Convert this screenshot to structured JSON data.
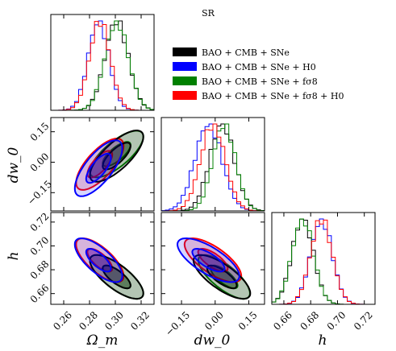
{
  "chart_data": {
    "type": "corner",
    "title": "SR",
    "legend_placement": "top-right",
    "parameters": [
      {
        "key": "omega_m",
        "label": "Ω_m",
        "ticks": [
          "0.26",
          "0.28",
          "0.30",
          "0.32"
        ],
        "range": [
          0.25,
          0.33
        ]
      },
      {
        "key": "dw0",
        "label": "dw_0",
        "ticks": [
          "−0.15",
          "0.00",
          "0.15"
        ],
        "range": [
          -0.24,
          0.22
        ]
      },
      {
        "key": "h",
        "label": "h",
        "ticks": [
          "0.66",
          "0.68",
          "0.70",
          "0.72"
        ],
        "range": [
          0.651,
          0.728
        ]
      }
    ],
    "series": [
      {
        "name": "BAO + CMB + SNe",
        "color": "#000000",
        "mean": {
          "omega_m": 0.301,
          "dw0": 0.03,
          "h": 0.674
        },
        "sd": {
          "omega_m": 0.009,
          "dw0": 0.055,
          "h": 0.008
        },
        "rho": 0.75
      },
      {
        "name": "BAO + CMB + SNe + H0",
        "color": "#0000ff",
        "mean": {
          "omega_m": 0.287,
          "dw0": -0.03,
          "h": 0.688
        },
        "sd": {
          "omega_m": 0.008,
          "dw0": 0.06,
          "h": 0.008
        },
        "rho": 0.72
      },
      {
        "name": "BAO + CMB + SNe + fσ8",
        "color": "#008000",
        "mean": {
          "omega_m": 0.301,
          "dw0": 0.04,
          "h": 0.674
        },
        "sd": {
          "omega_m": 0.009,
          "dw0": 0.05,
          "h": 0.008
        },
        "rho": 0.75
      },
      {
        "name": "BAO + CMB + SNe + fσ8 + H0",
        "color": "#ff0000",
        "mean": {
          "omega_m": 0.288,
          "dw0": -0.01,
          "h": 0.688
        },
        "sd": {
          "omega_m": 0.008,
          "dw0": 0.055,
          "h": 0.008
        },
        "rho": 0.72
      }
    ]
  }
}
